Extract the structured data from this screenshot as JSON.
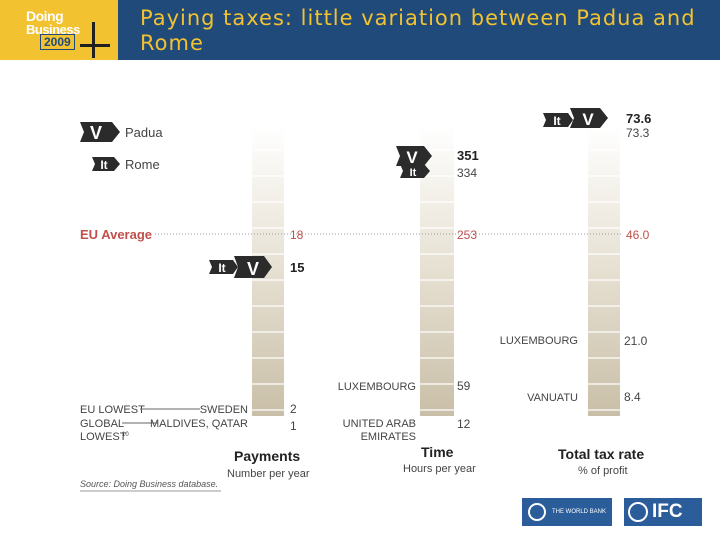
{
  "header": {
    "logo_line1": "Doing",
    "logo_line2": "Business",
    "logo_year": "2009",
    "title": "Paying taxes: little variation between Padua and Rome"
  },
  "legend": [
    {
      "badge": "V",
      "label": "Padua"
    },
    {
      "badge": "It",
      "label": "Rome"
    }
  ],
  "chart_data": [
    {
      "type": "table",
      "title": "Payments",
      "subtitle": "Number per year",
      "values": [
        {
          "label": "Padua",
          "badge": "V",
          "value": 15
        },
        {
          "label": "Rome",
          "badge": "It",
          "value": 15
        },
        {
          "label": "EU Average",
          "value": 18
        },
        {
          "label": "SWEDEN",
          "value": 2
        },
        {
          "label": "MALDIVES, QATAR",
          "value": 1
        }
      ],
      "value_labels": [
        "18",
        "15",
        "2",
        "1"
      ]
    },
    {
      "type": "table",
      "title": "Time",
      "subtitle": "Hours per year",
      "values": [
        {
          "label": "Padua",
          "badge": "V",
          "value": 351
        },
        {
          "label": "Rome",
          "badge": "It",
          "value": 334
        },
        {
          "label": "EU Average",
          "value": 253
        },
        {
          "label": "LUXEMBOURG",
          "value": 59
        },
        {
          "label": "UNITED ARAB EMIRATES",
          "value": 12
        }
      ],
      "value_labels": [
        "351",
        "334",
        "253",
        "59",
        "12"
      ]
    },
    {
      "type": "table",
      "title": "Total tax rate",
      "subtitle": "% of profit",
      "values": [
        {
          "label": "Padua",
          "badge": "V",
          "value": 73.6
        },
        {
          "label": "Rome",
          "badge": "It",
          "value": 73.3
        },
        {
          "label": "EU Average",
          "value": 46.0
        },
        {
          "label": "LUXEMBOURG",
          "value": 21.0
        },
        {
          "label": "VANUATU",
          "value": 8.4
        }
      ],
      "value_labels": [
        "73.6",
        "73.3",
        "46.0",
        "21.0",
        "8.4"
      ]
    }
  ],
  "row_labels": {
    "eu_average": "EU Average",
    "eu_lowest": "EU LOWEST",
    "global_lowest_line1": "GLOBAL",
    "global_lowest_line2": "LOWEST",
    "global_lowest_note": "10",
    "eu_lowest_country": "SWEDEN",
    "global_lowest_country": "MALDIVES, QATAR"
  },
  "time_labels": {
    "luxembourg": "LUXEMBOURG",
    "uae_line1": "UNITED ARAB",
    "uae_line2": "EMIRATES"
  },
  "rate_labels": {
    "luxembourg": "LUXEMBOURG",
    "vanuatu": "VANUATU"
  },
  "source": "Source: Doing Business database.",
  "footer": {
    "world_bank": "THE WORLD BANK",
    "ifc": "IFC"
  },
  "colors": {
    "header_bg": "#1f4a7a",
    "title": "#f2c230",
    "logo": "#f2c230",
    "eu_average": "#c0504d",
    "badge": "#2b2b2b",
    "column_top": "#ffffff",
    "column_bottom": "#c9bfa8"
  }
}
